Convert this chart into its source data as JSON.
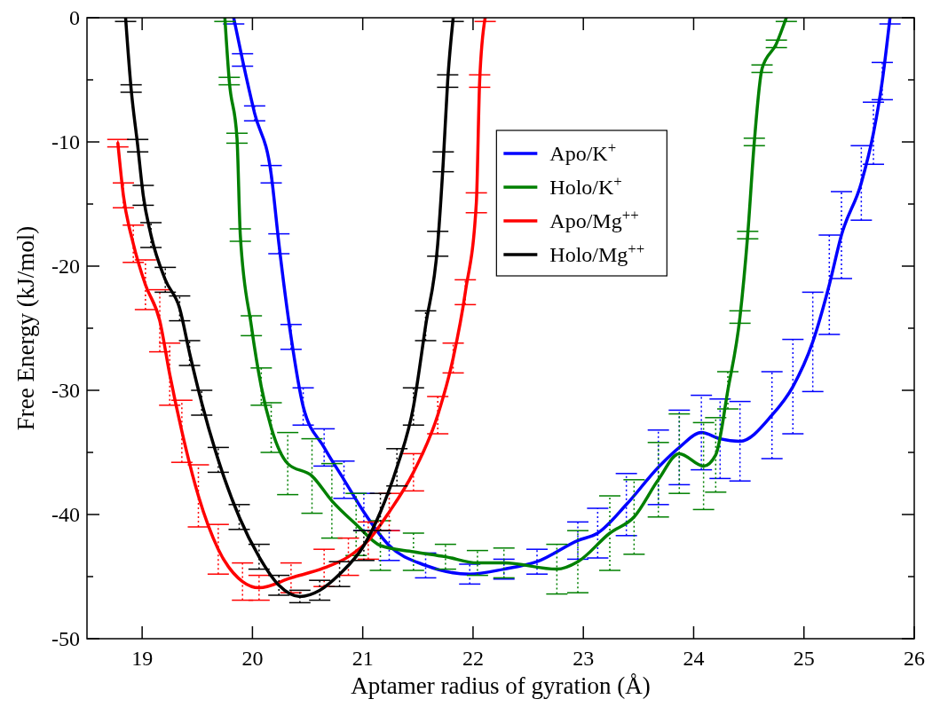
{
  "chart_data": {
    "type": "line",
    "xlabel": "Aptamer radius of gyration (Å)",
    "ylabel": "Free Energy (kJ/mol)",
    "xlim": [
      18.5,
      26
    ],
    "xticks": [
      19,
      20,
      21,
      22,
      23,
      24,
      25,
      26
    ],
    "ylim": [
      -50,
      0
    ],
    "yticks": [
      -50,
      {
        "value": -45,
        "label": null
      },
      -40,
      {
        "value": -35,
        "label": null
      },
      -30,
      {
        "value": -25,
        "label": null
      },
      -20,
      {
        "value": -15,
        "label": null
      },
      -10,
      {
        "value": -5,
        "label": null
      },
      0
    ],
    "legend": "top right",
    "grid": false,
    "marker": "none",
    "line_style": "solid",
    "series": [
      {
        "name": "Apo/K$^{+}$",
        "color": "#0000ff",
        "x": [
          19.83,
          19.91,
          20.02,
          20.17,
          20.24,
          20.35,
          20.46,
          20.65,
          20.83,
          21.01,
          21.24,
          21.57,
          21.97,
          22.28,
          22.58,
          22.95,
          23.13,
          23.39,
          23.68,
          23.87,
          24.07,
          24.24,
          24.42,
          24.71,
          24.9,
          25.08,
          25.23,
          25.34,
          25.52,
          25.63,
          25.71,
          25.78
        ],
        "values": [
          0,
          -3.4,
          -7.7,
          -12.6,
          -18.2,
          -25.7,
          -31.3,
          -34.6,
          -37.2,
          -39.8,
          -42.5,
          -44.1,
          -44.8,
          -44.4,
          -43.8,
          -42.1,
          -41.5,
          -39.2,
          -36.2,
          -34.6,
          -33.4,
          -33.9,
          -34.1,
          -32,
          -29.7,
          -26.1,
          -21.5,
          -17.5,
          -13.3,
          -9.3,
          -5.1,
          0
        ],
        "errors": [
          0.5,
          0.5,
          0.6,
          0.7,
          0.8,
          1,
          1.5,
          1.5,
          1.5,
          1.5,
          1.2,
          1,
          0.8,
          0.8,
          1,
          1.5,
          2,
          2.5,
          3,
          3,
          3,
          3.2,
          3.2,
          3.5,
          3.8,
          4,
          4,
          3.5,
          3,
          2.5,
          1.5,
          0.5
        ]
      },
      {
        "name": "Holo/K$^{+}$",
        "color": "#008000",
        "x": [
          19.75,
          19.79,
          19.86,
          19.89,
          19.99,
          20.08,
          20.17,
          20.32,
          20.54,
          20.72,
          20.94,
          21.16,
          21.46,
          21.75,
          22.04,
          22.28,
          22.76,
          22.95,
          23.24,
          23.46,
          23.68,
          23.87,
          24.09,
          24.2,
          24.31,
          24.42,
          24.49,
          24.55,
          24.62,
          24.75,
          24.84
        ],
        "values": [
          0,
          -5.1,
          -9.7,
          -17.5,
          -24.8,
          -29.7,
          -33,
          -35.9,
          -36.9,
          -38.9,
          -40.8,
          -42.5,
          -43,
          -43.4,
          -43.9,
          -43.9,
          -44.4,
          -43.8,
          -41.5,
          -40.2,
          -37.2,
          -35.1,
          -36.1,
          -35.2,
          -30,
          -24.1,
          -17.5,
          -10,
          -4.1,
          -2.1,
          0
        ],
        "errors": [
          0.3,
          0.3,
          0.4,
          0.5,
          0.8,
          1.5,
          2,
          2.5,
          3,
          3,
          2.5,
          2,
          1.5,
          1,
          1,
          1.2,
          2,
          2.5,
          3,
          3,
          3,
          3.2,
          3.5,
          3,
          1.5,
          0.5,
          0.3,
          0.3,
          0.3,
          0.3,
          0.3
        ]
      },
      {
        "name": "Apo/Mg$^{++}$",
        "color": "#ff0000",
        "x": [
          18.78,
          18.83,
          18.92,
          19.03,
          19.16,
          19.25,
          19.36,
          19.51,
          19.69,
          19.91,
          20.06,
          20.35,
          20.65,
          20.87,
          21.05,
          21.24,
          21.46,
          21.68,
          21.82,
          21.93,
          22.03,
          22.06,
          22.11
        ],
        "values": [
          -10.1,
          -14.3,
          -18.2,
          -21.5,
          -24.4,
          -28.7,
          -33.3,
          -38.5,
          -42.8,
          -45.4,
          -45.9,
          -45.1,
          -44.3,
          -43.4,
          -42.1,
          -39.8,
          -36.6,
          -32,
          -27.4,
          -22.1,
          -14.9,
          -5.1,
          0
        ],
        "errors": [
          0.3,
          1,
          1.5,
          2,
          2.5,
          2.5,
          2.5,
          2.5,
          2,
          1.5,
          1,
          1.2,
          1.5,
          1.5,
          1.5,
          1.5,
          1.5,
          1.5,
          1.2,
          1,
          0.8,
          0.5,
          0.3
        ]
      },
      {
        "name": "Holo/Mg$^{++}$",
        "color": "#000000",
        "x": [
          18.85,
          18.9,
          18.96,
          19.01,
          19.08,
          19.21,
          19.34,
          19.43,
          19.54,
          19.69,
          19.88,
          20.06,
          20.24,
          20.43,
          20.61,
          20.79,
          21.01,
          21.16,
          21.31,
          21.46,
          21.57,
          21.68,
          21.73,
          21.77,
          21.82
        ],
        "values": [
          0,
          -5.7,
          -10.3,
          -14.3,
          -17.5,
          -21.1,
          -23.4,
          -27,
          -31,
          -35.6,
          -40.2,
          -43.4,
          -45.7,
          -46.6,
          -46.1,
          -44.8,
          -42.5,
          -39.8,
          -36.2,
          -31.3,
          -24.8,
          -18.2,
          -11.6,
          -5.1,
          0
        ],
        "errors": [
          0.3,
          0.3,
          0.5,
          0.8,
          1,
          1,
          1,
          1,
          1,
          1,
          1,
          1,
          0.8,
          0.5,
          0.8,
          1,
          1.2,
          1.5,
          1.5,
          1.5,
          1.2,
          1,
          0.8,
          0.5,
          0.3
        ]
      }
    ]
  }
}
